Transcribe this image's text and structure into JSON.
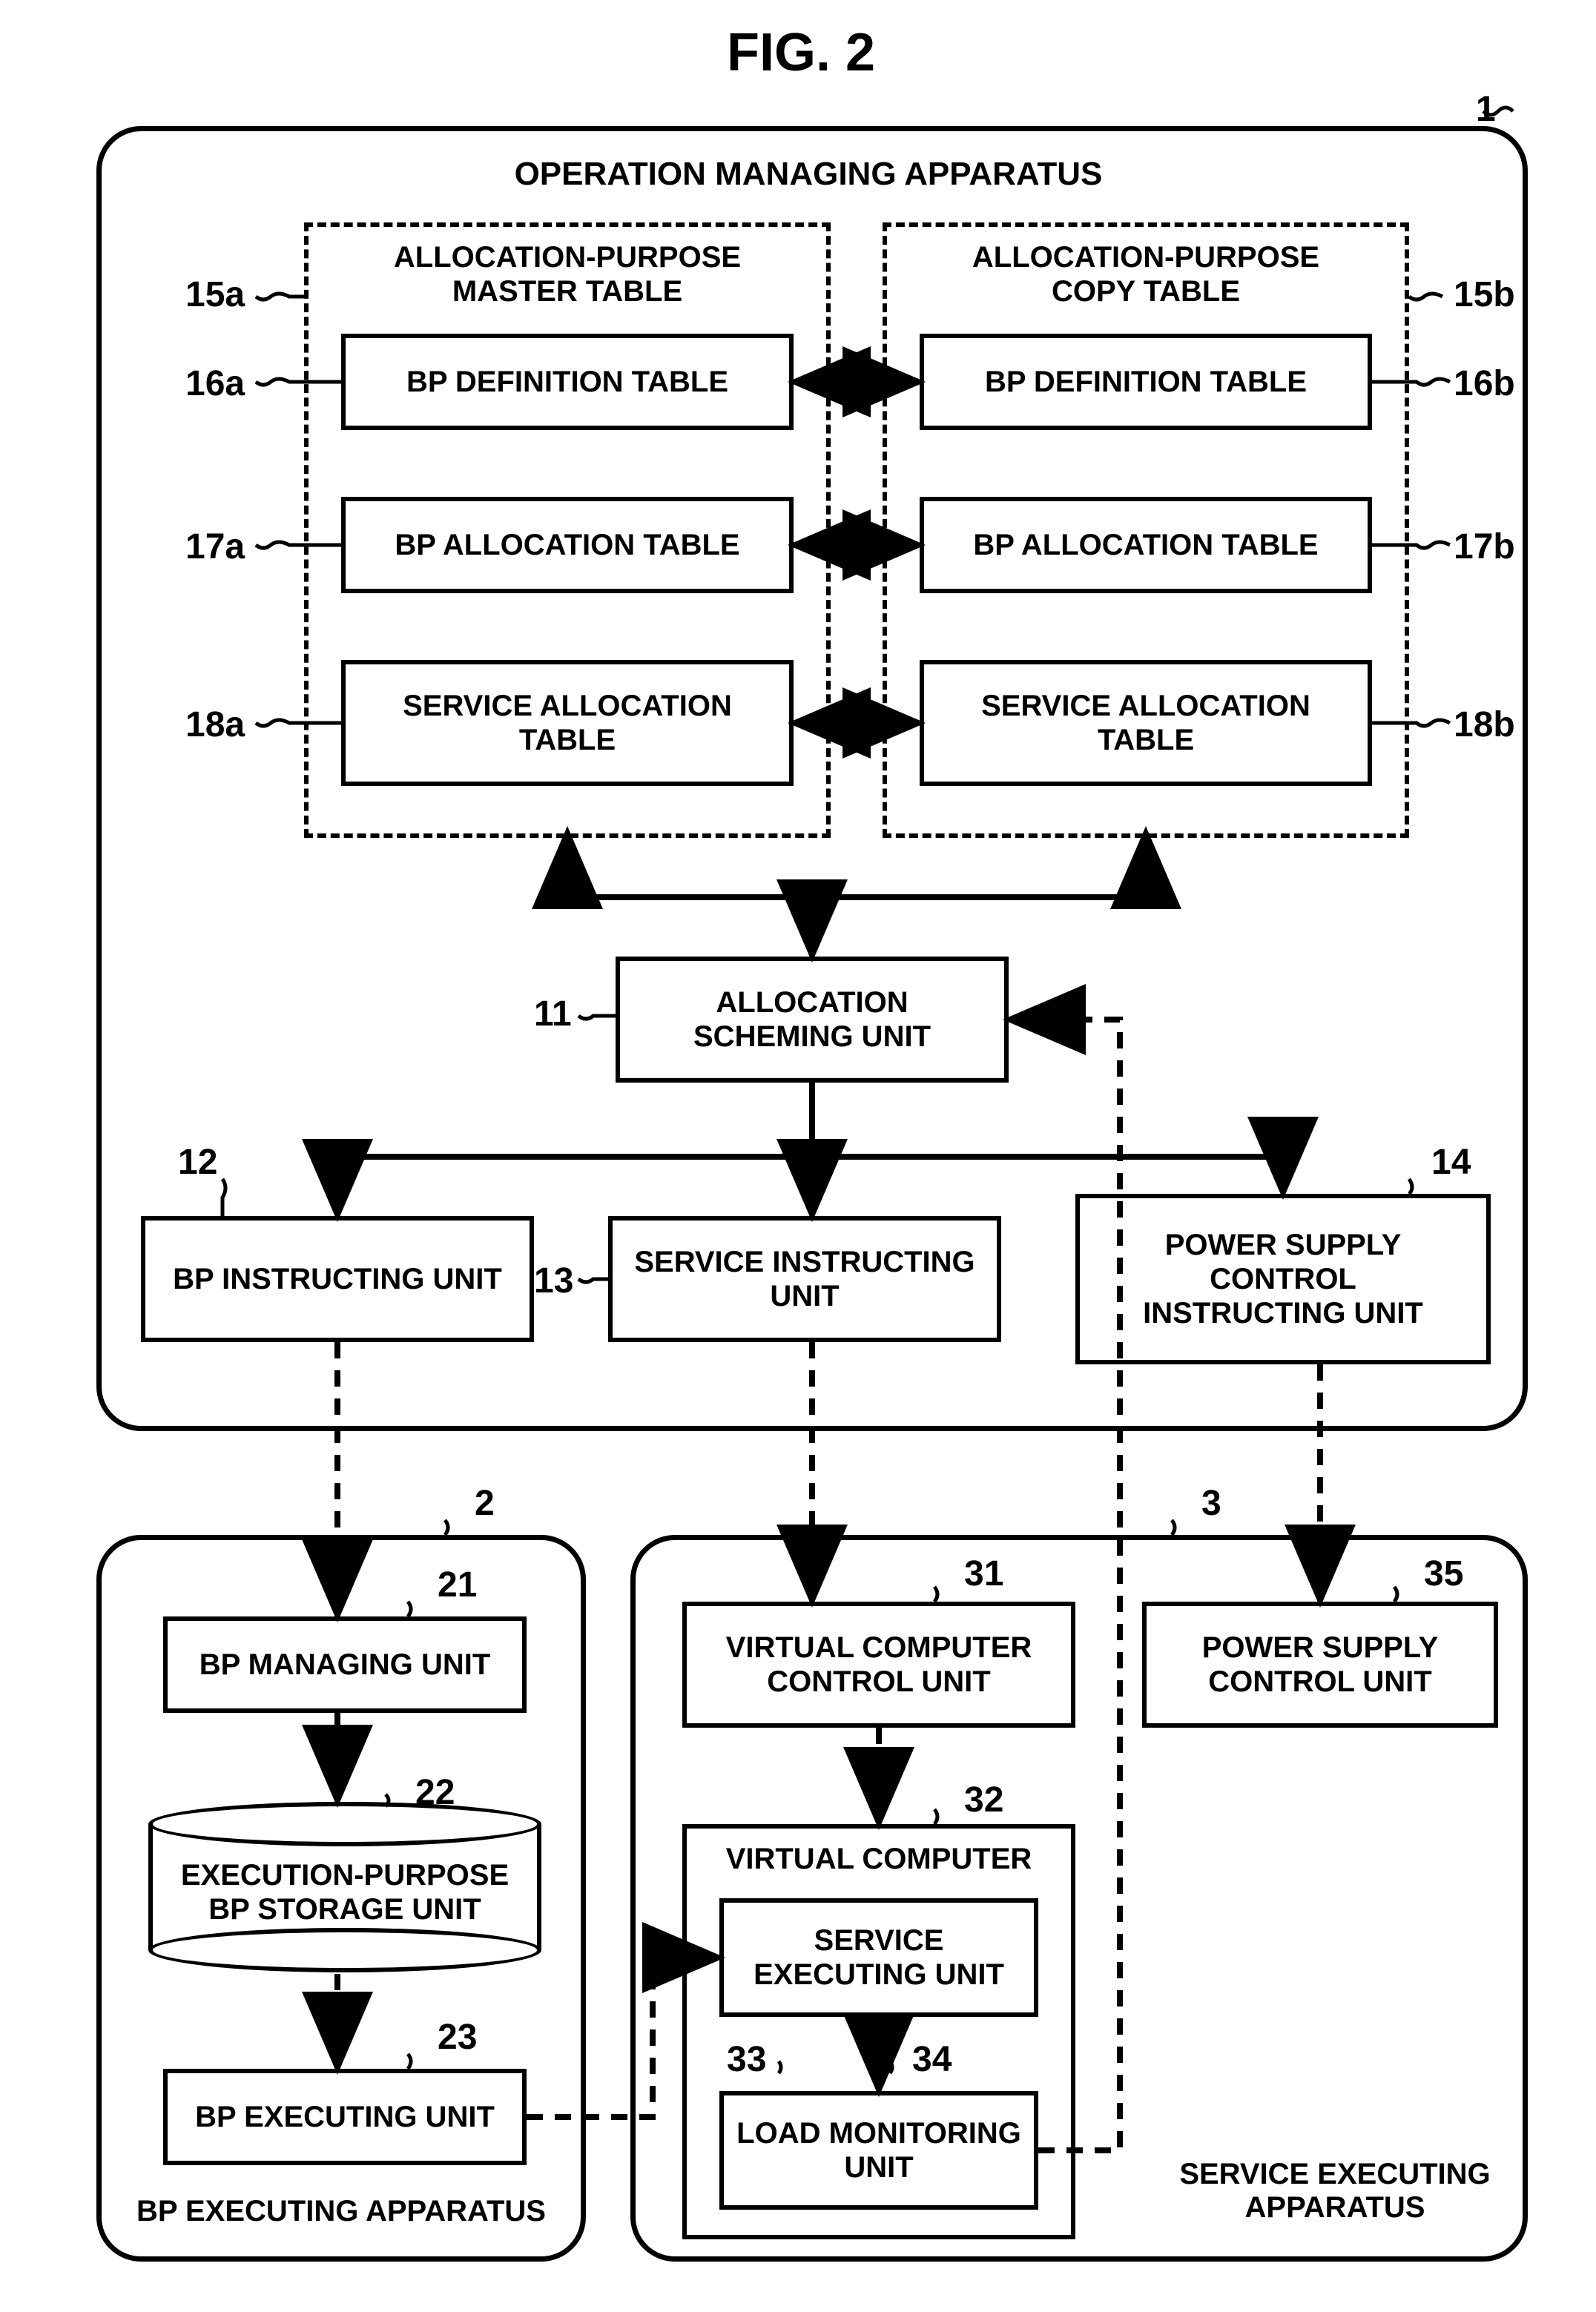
{
  "figure": {
    "title": "FIG. 2"
  },
  "apparatus1": {
    "title": "OPERATION MANAGING APPARATUS",
    "ref": "1",
    "masterTable": {
      "title": "ALLOCATION-PURPOSE\nMASTER TABLE",
      "ref": "15a"
    },
    "copyTable": {
      "title": "ALLOCATION-PURPOSE\nCOPY TABLE",
      "ref": "15b"
    },
    "bpDefA": {
      "label": "BP DEFINITION TABLE",
      "ref": "16a"
    },
    "bpDefB": {
      "label": "BP DEFINITION TABLE",
      "ref": "16b"
    },
    "bpAllocA": {
      "label": "BP ALLOCATION TABLE",
      "ref": "17a"
    },
    "bpAllocB": {
      "label": "BP ALLOCATION TABLE",
      "ref": "17b"
    },
    "svcAllocA": {
      "label": "SERVICE ALLOCATION\nTABLE",
      "ref": "18a"
    },
    "svcAllocB": {
      "label": "SERVICE ALLOCATION\nTABLE",
      "ref": "18b"
    },
    "allocUnit": {
      "label": "ALLOCATION\nSCHEMING UNIT",
      "ref": "11"
    },
    "bpInstr": {
      "label": "BP INSTRUCTING UNIT",
      "ref": "12"
    },
    "svcInstr": {
      "label": "SERVICE INSTRUCTING\nUNIT",
      "ref": "13"
    },
    "pwrInstr": {
      "label": "POWER SUPPLY\nCONTROL\nINSTRUCTING UNIT",
      "ref": "14"
    }
  },
  "apparatus2": {
    "title": "BP EXECUTING APPARATUS",
    "ref": "2",
    "bpMgr": {
      "label": "BP MANAGING UNIT",
      "ref": "21"
    },
    "bpStore": {
      "label": "EXECUTION-PURPOSE\nBP STORAGE UNIT",
      "ref": "22"
    },
    "bpExec": {
      "label": "BP EXECUTING UNIT",
      "ref": "23"
    }
  },
  "apparatus3": {
    "title": "SERVICE EXECUTING\nAPPARATUS",
    "ref": "3",
    "vcCtrl": {
      "label": "VIRTUAL COMPUTER\nCONTROL UNIT",
      "ref": "31"
    },
    "vc": {
      "title": "VIRTUAL COMPUTER",
      "ref": "32"
    },
    "svcExec": {
      "label": "SERVICE\nEXECUTING UNIT",
      "ref": "33"
    },
    "loadMon": {
      "label": "LOAD MONITORING\nUNIT",
      "ref": "34"
    },
    "pwrCtrl": {
      "label": "POWER SUPPLY\nCONTROL UNIT",
      "ref": "35"
    }
  },
  "style": {
    "stroke": "#000000",
    "strokeWidth": 6,
    "dash": "22 16",
    "arrowSize": 28,
    "font": "Arial"
  }
}
